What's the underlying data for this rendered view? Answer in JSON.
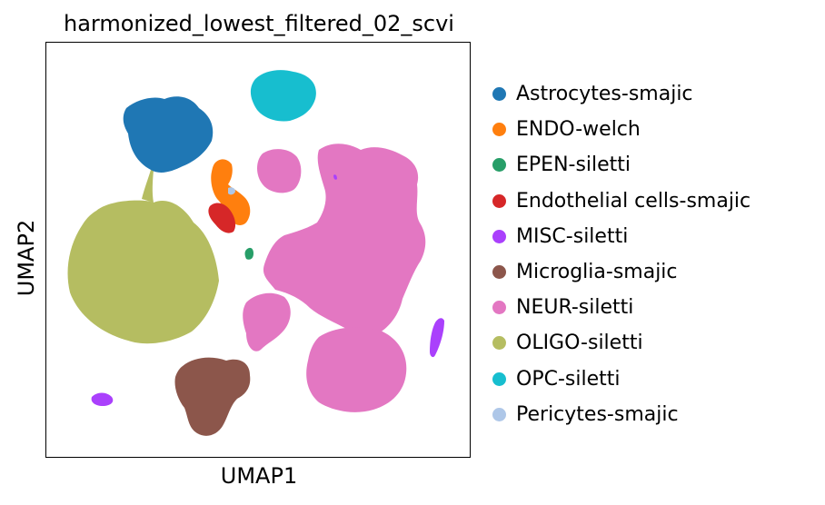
{
  "chart_data": {
    "type": "scatter",
    "title": "harmonized_lowest_filtered_02_scvi",
    "xlabel": "UMAP1",
    "ylabel": "UMAP2",
    "xticks": [],
    "yticks": [],
    "grid": false,
    "legend_position": "right",
    "series": [
      {
        "name": "Astrocytes-smajic",
        "color": "#1f77b4"
      },
      {
        "name": "ENDO-welch",
        "color": "#ff7f0e"
      },
      {
        "name": "EPEN-siletti",
        "color": "#279e68"
      },
      {
        "name": "Endothelial cells-smajic",
        "color": "#d62728"
      },
      {
        "name": "MISC-siletti",
        "color": "#aa40fc"
      },
      {
        "name": "Microglia-smajic",
        "color": "#8c564b"
      },
      {
        "name": "NEUR-siletti",
        "color": "#e377c2"
      },
      {
        "name": "OLIGO-siletti",
        "color": "#b5bd61"
      },
      {
        "name": "OPC-siletti",
        "color": "#17becf"
      },
      {
        "name": "Pericytes-smajic",
        "color": "#aec7e8"
      }
    ]
  }
}
